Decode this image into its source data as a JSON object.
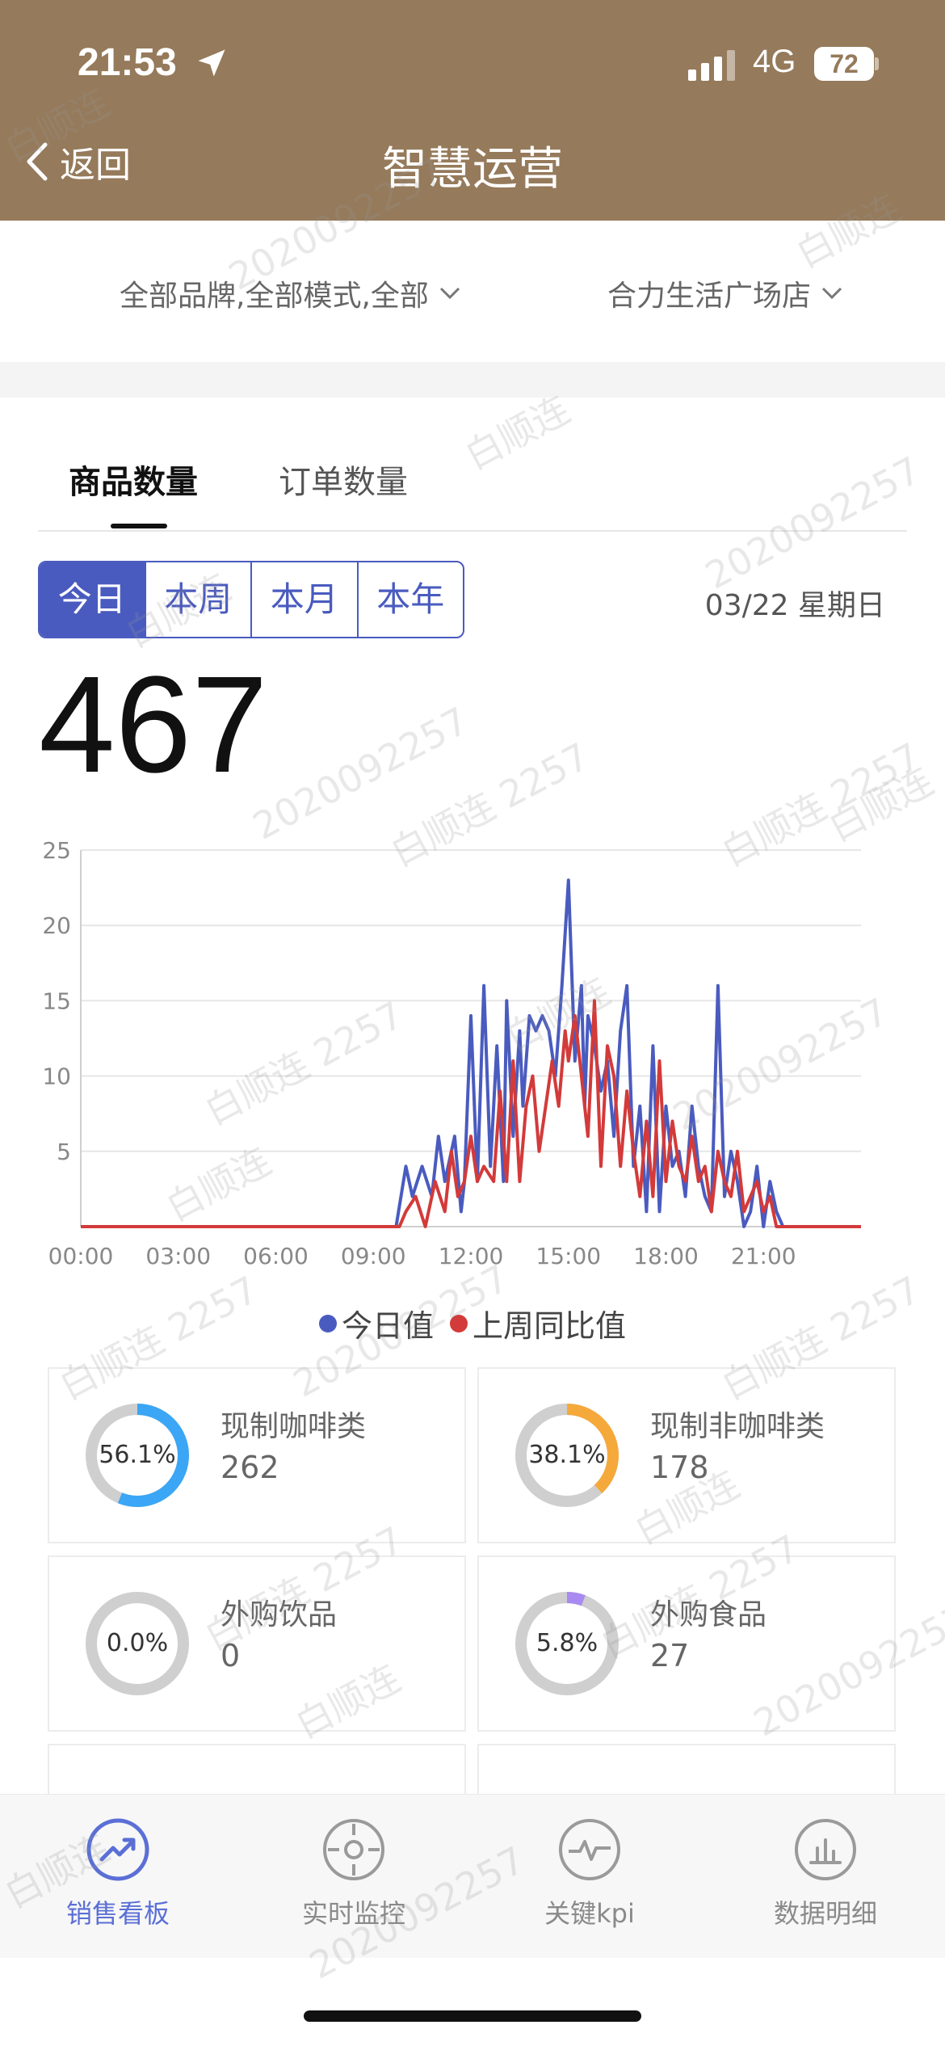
{
  "status_bar": {
    "time": "21:53",
    "network": "4G",
    "battery": "72"
  },
  "header": {
    "back_label": "返回",
    "title": "智慧运营"
  },
  "filters": {
    "brand": "全部品牌,全部模式,全部",
    "store": "合力生活广场店"
  },
  "tabs": [
    "商品数量",
    "订单数量"
  ],
  "periods": [
    "今日",
    "本周",
    "本月",
    "本年"
  ],
  "selected_period": "今日",
  "date": "03/22 星期日",
  "total": "467",
  "chart_data": {
    "type": "line",
    "x_tick_labels": [
      "00:00",
      "03:00",
      "06:00",
      "09:00",
      "12:00",
      "15:00",
      "18:00",
      "21:00"
    ],
    "x_unit": "hour of day",
    "xlim": [
      0,
      24
    ],
    "ylim": [
      0,
      25
    ],
    "y_ticks": [
      5,
      10,
      15,
      20,
      25
    ],
    "grid": true,
    "legend_position": "bottom",
    "series": [
      {
        "name": "今日值",
        "color": "#4a5bbf",
        "x": [
          0,
          9.7,
          10.0,
          10.2,
          10.5,
          10.8,
          11.0,
          11.2,
          11.5,
          11.7,
          11.8,
          12.0,
          12.2,
          12.4,
          12.6,
          12.8,
          13.0,
          13.1,
          13.3,
          13.5,
          13.6,
          13.8,
          14.0,
          14.2,
          14.4,
          14.6,
          14.8,
          15.0,
          15.2,
          15.4,
          15.5,
          15.6,
          15.8,
          16.0,
          16.2,
          16.4,
          16.6,
          16.8,
          17.0,
          17.2,
          17.4,
          17.6,
          17.8,
          18.0,
          18.2,
          18.4,
          18.6,
          18.8,
          19.0,
          19.2,
          19.4,
          19.6,
          19.8,
          20.0,
          20.2,
          20.4,
          20.6,
          20.8,
          21.0,
          21.2,
          21.4,
          21.6,
          24
        ],
        "y": [
          0,
          0,
          4,
          2,
          4,
          2,
          6,
          3,
          6,
          1,
          3,
          14,
          3,
          16,
          4,
          12,
          3,
          15,
          6,
          13,
          8,
          14,
          13,
          14,
          13,
          10,
          16,
          23,
          11,
          16,
          8,
          14,
          12,
          9,
          11,
          6,
          13,
          16,
          4,
          8,
          1,
          12,
          1,
          8,
          4,
          5,
          2,
          8,
          4,
          2,
          1,
          16,
          2,
          5,
          3,
          0,
          1,
          4,
          0,
          3,
          1,
          0,
          0
        ]
      },
      {
        "name": "上周同比值",
        "color": "#d33a3a",
        "x": [
          0,
          9.8,
          10.0,
          10.3,
          10.6,
          10.9,
          11.2,
          11.4,
          11.6,
          11.8,
          12.0,
          12.2,
          12.4,
          12.7,
          12.9,
          13.1,
          13.3,
          13.5,
          13.7,
          13.9,
          14.1,
          14.3,
          14.5,
          14.7,
          14.9,
          15.0,
          15.2,
          15.4,
          15.6,
          15.8,
          16.0,
          16.2,
          16.4,
          16.6,
          16.8,
          17.0,
          17.2,
          17.4,
          17.6,
          17.8,
          18.0,
          18.2,
          18.4,
          18.6,
          18.8,
          19.0,
          19.2,
          19.4,
          19.6,
          19.8,
          20.0,
          20.2,
          20.4,
          20.6,
          20.8,
          21.0,
          21.2,
          21.4,
          21.6,
          24
        ],
        "y": [
          0,
          0,
          1,
          2,
          0,
          3,
          1,
          5,
          2,
          3,
          6,
          3,
          4,
          3,
          9,
          3,
          11,
          3,
          8,
          10,
          5,
          8,
          11,
          8,
          13,
          11,
          14,
          10,
          6,
          15,
          4,
          12,
          10,
          4,
          9,
          5,
          2,
          7,
          2,
          11,
          3,
          7,
          4,
          3,
          6,
          3,
          4,
          1,
          5,
          3,
          2,
          5,
          1,
          2,
          3,
          1,
          2,
          0,
          0,
          0
        ]
      }
    ]
  },
  "legend": {
    "today": "今日值",
    "last_week": "上周同比值"
  },
  "categories": [
    {
      "name": "现制咖啡类",
      "count": "262",
      "percent_label": "56.1%",
      "percent": 56.1,
      "color": "#3ba6f5"
    },
    {
      "name": "现制非咖啡类",
      "count": "178",
      "percent_label": "38.1%",
      "percent": 38.1,
      "color": "#f5a93b"
    },
    {
      "name": "外购饮品",
      "count": "0",
      "percent_label": "0.0%",
      "percent": 0.0,
      "color": "#cfcfcf"
    },
    {
      "name": "外购食品",
      "count": "27",
      "percent_label": "5.8%",
      "percent": 5.8,
      "color": "#a98af0"
    }
  ],
  "bottom_nav": [
    {
      "label": "销售看板",
      "icon": "trend-icon",
      "active": true
    },
    {
      "label": "实时监控",
      "icon": "target-icon",
      "active": false
    },
    {
      "label": "关键kpi",
      "icon": "pulse-icon",
      "active": false
    },
    {
      "label": "数据明细",
      "icon": "bar-chart-icon",
      "active": false
    }
  ],
  "watermark": {
    "name": "白顺连",
    "name_id": "白顺连 2257",
    "id": "2020092257"
  },
  "colors": {
    "header": "#957a5b",
    "accent": "#4a5bbf",
    "today": "#4a5bbf",
    "last_week": "#d33a3a"
  }
}
